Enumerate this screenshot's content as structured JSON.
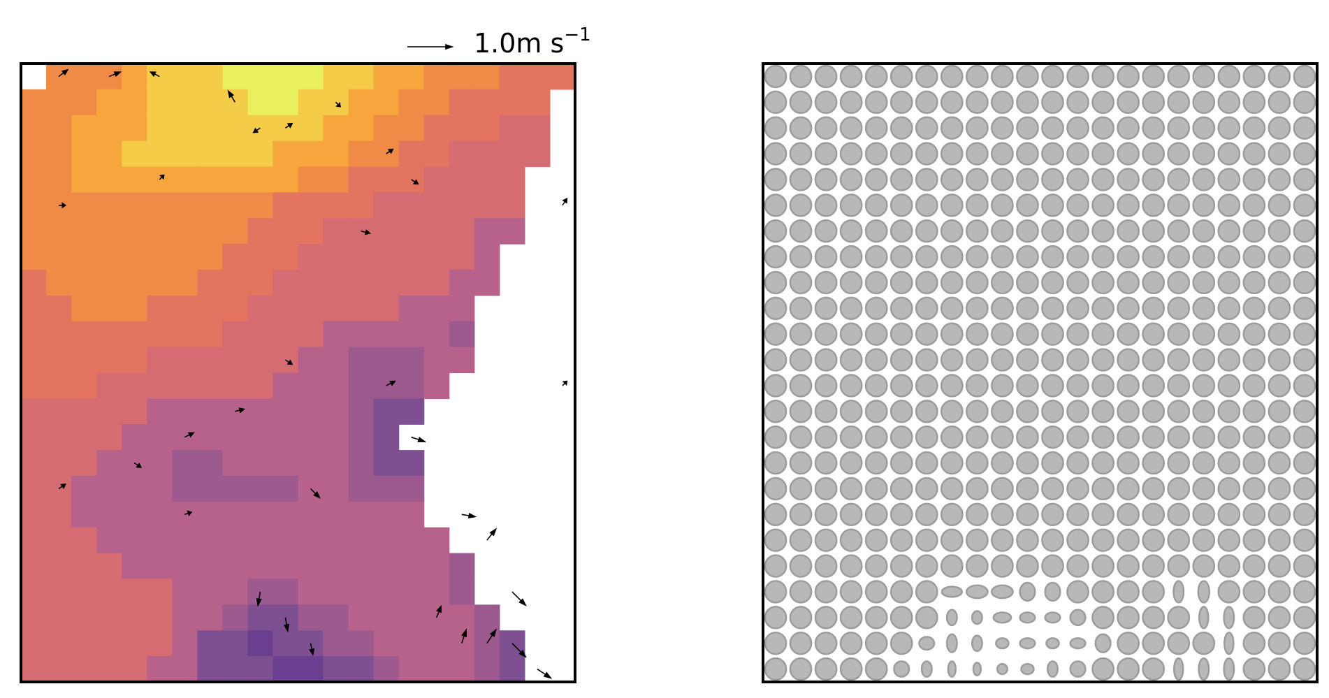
{
  "chart_data": {
    "type": "heatmap_quiver",
    "key_value": 1.0,
    "key_label": "1.0m s",
    "key_label_exponent": "−1",
    "colormap": [
      "#6b3f8f",
      "#7e4f91",
      "#9c5a8f",
      "#b7628a",
      "#d46c72",
      "#e37560",
      "#f08a47",
      "#f7a63d",
      "#f4cc47",
      "#e8f060"
    ],
    "heatmap": [
      [
        null,
        6,
        6,
        6,
        7,
        8,
        8,
        8,
        9,
        9,
        9,
        9,
        8,
        8,
        7,
        7,
        6,
        6,
        6,
        5,
        5,
        5
      ],
      [
        6,
        6,
        6,
        7,
        7,
        8,
        8,
        8,
        8,
        9,
        9,
        8,
        8,
        7,
        7,
        6,
        6,
        5,
        5,
        5,
        5,
        null
      ],
      [
        6,
        6,
        7,
        7,
        7,
        8,
        8,
        8,
        8,
        8,
        8,
        8,
        7,
        7,
        6,
        6,
        5,
        5,
        5,
        4,
        4,
        null
      ],
      [
        6,
        6,
        7,
        7,
        8,
        8,
        8,
        8,
        8,
        8,
        7,
        7,
        7,
        6,
        6,
        5,
        5,
        4,
        4,
        4,
        4,
        null
      ],
      [
        6,
        6,
        7,
        7,
        7,
        7,
        7,
        7,
        7,
        7,
        7,
        6,
        6,
        5,
        5,
        5,
        4,
        4,
        4,
        4,
        null,
        null
      ],
      [
        6,
        6,
        6,
        6,
        6,
        6,
        6,
        6,
        6,
        6,
        5,
        5,
        5,
        5,
        4,
        4,
        4,
        4,
        4,
        4,
        null,
        null
      ],
      [
        6,
        6,
        6,
        6,
        6,
        6,
        6,
        6,
        6,
        5,
        5,
        5,
        4,
        4,
        4,
        4,
        4,
        4,
        3,
        3,
        null,
        null
      ],
      [
        6,
        6,
        6,
        6,
        6,
        6,
        6,
        6,
        5,
        5,
        5,
        4,
        4,
        4,
        4,
        4,
        4,
        4,
        3,
        null,
        null,
        null
      ],
      [
        5,
        6,
        6,
        6,
        6,
        6,
        6,
        5,
        5,
        5,
        4,
        4,
        4,
        4,
        4,
        4,
        4,
        3,
        3,
        null,
        null,
        null
      ],
      [
        5,
        5,
        6,
        6,
        6,
        5,
        5,
        5,
        5,
        4,
        4,
        4,
        4,
        4,
        4,
        3,
        3,
        3,
        null,
        null,
        null,
        null
      ],
      [
        5,
        5,
        5,
        5,
        5,
        5,
        5,
        5,
        4,
        4,
        4,
        4,
        3,
        3,
        3,
        3,
        3,
        2,
        null,
        null,
        null,
        null
      ],
      [
        5,
        5,
        5,
        5,
        5,
        4,
        4,
        4,
        4,
        4,
        4,
        3,
        3,
        2,
        2,
        2,
        3,
        3,
        null,
        null,
        null,
        null
      ],
      [
        5,
        5,
        5,
        4,
        4,
        4,
        4,
        4,
        4,
        4,
        3,
        3,
        3,
        2,
        2,
        2,
        3,
        null,
        null,
        null,
        null,
        null
      ],
      [
        4,
        4,
        4,
        4,
        4,
        3,
        3,
        3,
        3,
        3,
        3,
        3,
        3,
        2,
        1,
        1,
        null,
        null,
        null,
        null,
        null,
        null
      ],
      [
        4,
        4,
        4,
        4,
        3,
        3,
        3,
        3,
        3,
        3,
        3,
        3,
        3,
        2,
        1,
        null,
        null,
        null,
        null,
        null,
        null,
        null
      ],
      [
        4,
        4,
        4,
        3,
        3,
        3,
        2,
        2,
        3,
        3,
        3,
        3,
        3,
        2,
        1,
        1,
        null,
        null,
        null,
        null,
        null,
        null
      ],
      [
        4,
        4,
        3,
        3,
        3,
        3,
        2,
        2,
        2,
        2,
        2,
        3,
        3,
        2,
        2,
        2,
        null,
        null,
        null,
        null,
        null,
        null
      ],
      [
        4,
        4,
        3,
        3,
        3,
        3,
        3,
        3,
        3,
        3,
        3,
        3,
        3,
        3,
        3,
        3,
        null,
        null,
        null,
        null,
        null,
        null
      ],
      [
        4,
        4,
        4,
        3,
        3,
        3,
        3,
        3,
        3,
        3,
        3,
        3,
        3,
        3,
        3,
        3,
        3,
        null,
        null,
        null,
        null,
        null
      ],
      [
        4,
        4,
        4,
        4,
        3,
        3,
        3,
        3,
        3,
        3,
        3,
        3,
        3,
        3,
        3,
        3,
        3,
        2,
        null,
        null,
        null,
        null
      ],
      [
        4,
        4,
        4,
        4,
        4,
        4,
        3,
        3,
        3,
        2,
        2,
        3,
        3,
        3,
        3,
        3,
        3,
        2,
        null,
        null,
        null,
        null
      ],
      [
        4,
        4,
        4,
        4,
        4,
        4,
        3,
        3,
        2,
        1,
        1,
        2,
        2,
        3,
        3,
        3,
        3,
        3,
        2,
        null,
        null,
        null
      ],
      [
        4,
        4,
        4,
        4,
        4,
        4,
        3,
        1,
        1,
        0,
        1,
        1,
        2,
        2,
        3,
        3,
        3,
        3,
        2,
        1,
        null,
        null
      ],
      [
        4,
        4,
        4,
        4,
        4,
        3,
        3,
        1,
        1,
        1,
        0,
        0,
        1,
        1,
        2,
        3,
        3,
        3,
        2,
        1,
        null,
        null
      ]
    ],
    "arrows": {
      "col": [
        1,
        3,
        5,
        8,
        10,
        12,
        14,
        1,
        5,
        9,
        13,
        15,
        6,
        10,
        14,
        8,
        4,
        11,
        15,
        1,
        6,
        17,
        18,
        19,
        19,
        20,
        21,
        21,
        9,
        10,
        11,
        16,
        17,
        18
      ],
      "row": [
        0,
        0,
        0,
        1,
        2,
        1,
        3,
        5,
        4,
        2,
        6,
        4,
        14,
        11,
        12,
        13,
        15,
        16,
        14,
        16,
        17,
        17,
        18,
        20,
        22,
        23,
        5,
        12,
        20,
        21,
        22,
        21,
        22,
        22
      ],
      "u": [
        0.2,
        0.25,
        -0.2,
        -0.15,
        0.15,
        0.1,
        0.15,
        0.15,
        0.1,
        -0.15,
        0.2,
        0.15,
        0.2,
        0.15,
        0.2,
        0.2,
        0.15,
        0.2,
        0.3,
        0.15,
        0.15,
        0.3,
        0.2,
        0.3,
        0.3,
        0.3,
        0.1,
        0.1,
        -0.05,
        0.05,
        0.05,
        0.1,
        0.1,
        0.2
      ],
      "v": [
        0.15,
        0.1,
        0.1,
        0.25,
        0.1,
        -0.1,
        0.1,
        0.0,
        0.1,
        -0.1,
        -0.05,
        -0.1,
        0.1,
        -0.1,
        0.1,
        0.05,
        -0.1,
        -0.2,
        -0.1,
        0.1,
        0.05,
        -0.05,
        0.25,
        -0.3,
        -0.3,
        -0.2,
        0.15,
        0.1,
        -0.3,
        -0.3,
        -0.25,
        0.25,
        0.3,
        0.3
      ]
    },
    "ellipses": {
      "radius": 0.42,
      "col": [
        7,
        8,
        9,
        10,
        11,
        7,
        8,
        9,
        10,
        11,
        12,
        6,
        7,
        8,
        9,
        10,
        11,
        12,
        13,
        16,
        17,
        17,
        18,
        18,
        16,
        17,
        18,
        5,
        6,
        7,
        8,
        9,
        10,
        11,
        12
      ],
      "row": [
        20,
        20,
        20,
        20,
        20,
        21,
        21,
        21,
        21,
        21,
        21,
        22,
        22,
        22,
        22,
        22,
        22,
        22,
        22,
        20,
        20,
        21,
        21,
        22,
        23,
        23,
        23,
        23,
        23,
        23,
        23,
        23,
        23,
        23,
        23
      ],
      "rx": [
        0.4,
        0.42,
        0.42,
        0.3,
        0.3,
        0.2,
        0.2,
        0.35,
        0.3,
        0.3,
        0.3,
        0.3,
        0.2,
        0.2,
        0.25,
        0.3,
        0.25,
        0.3,
        0.3,
        0.2,
        0.22,
        0.18,
        0.2,
        0.18,
        0.18,
        0.2,
        0.2,
        0.3,
        0.2,
        0.15,
        0.15,
        0.2,
        0.25,
        0.2,
        0.3
      ],
      "ry": [
        0.2,
        0.25,
        0.25,
        0.35,
        0.35,
        0.3,
        0.25,
        0.2,
        0.2,
        0.2,
        0.3,
        0.25,
        0.35,
        0.3,
        0.2,
        0.2,
        0.2,
        0.2,
        0.35,
        0.42,
        0.42,
        0.42,
        0.42,
        0.42,
        0.42,
        0.42,
        0.42,
        0.3,
        0.3,
        0.3,
        0.25,
        0.2,
        0.2,
        0.3,
        0.3
      ]
    }
  }
}
